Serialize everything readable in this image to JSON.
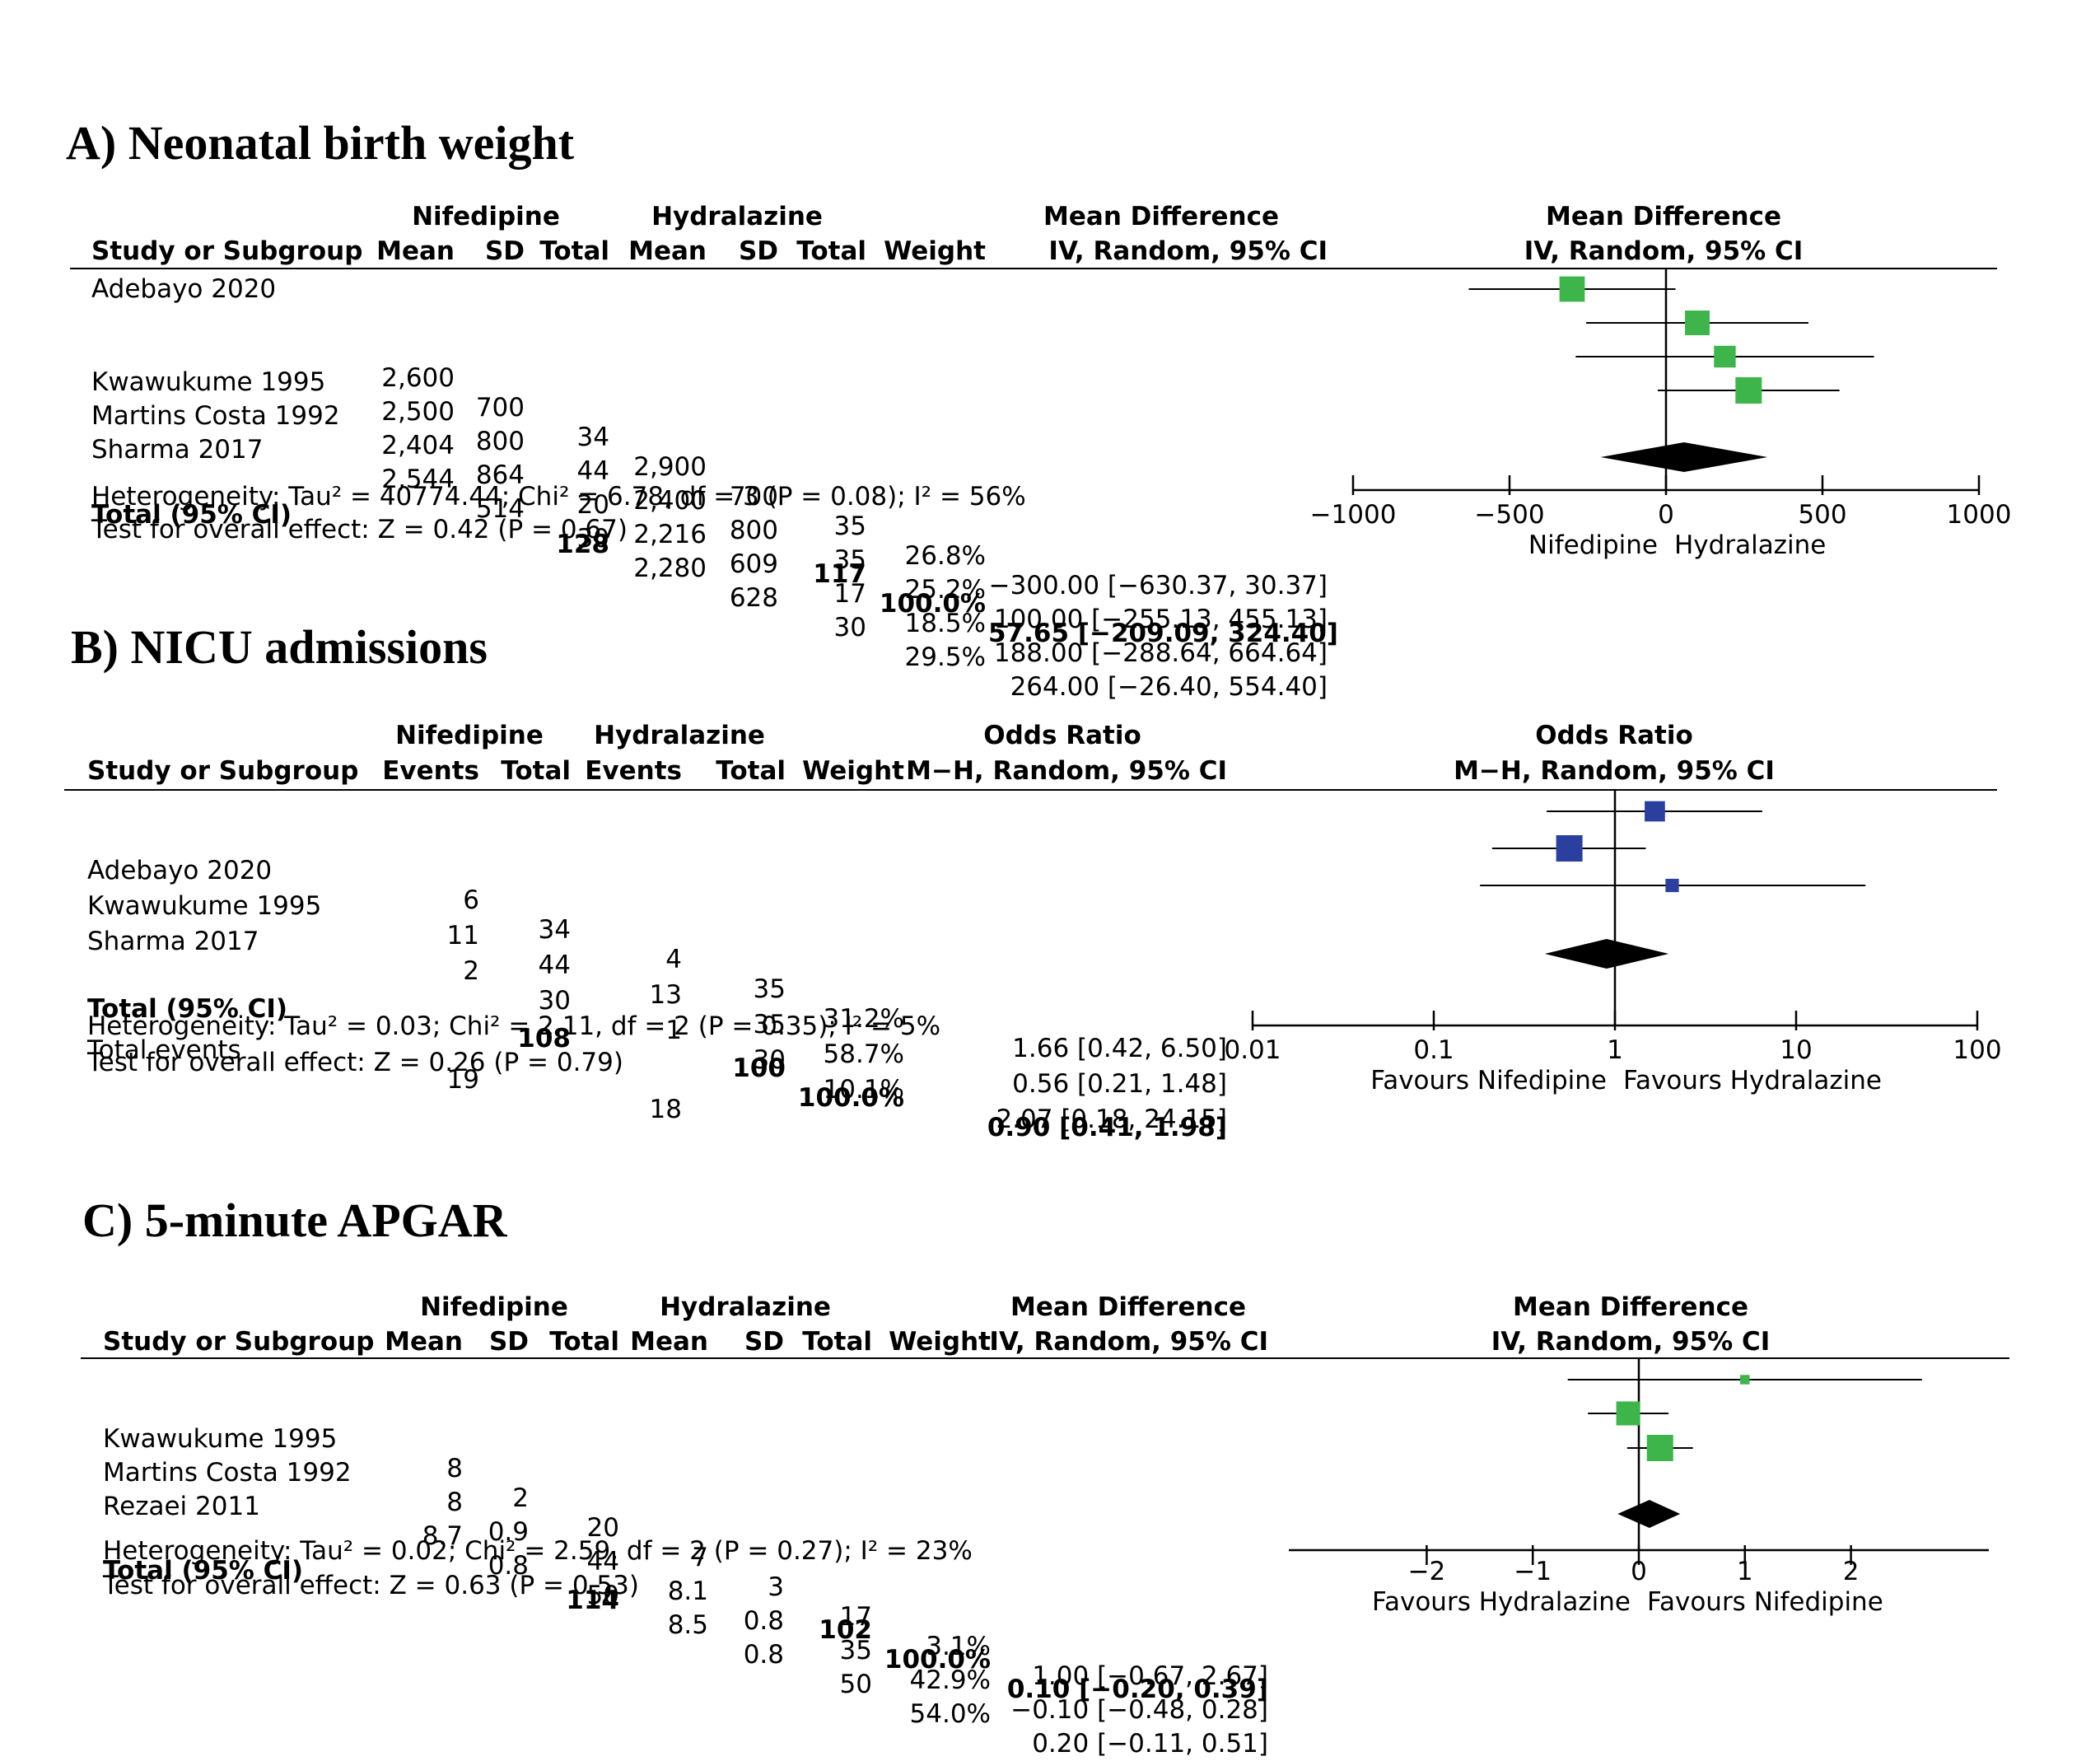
{
  "chart_data": [
    {
      "type": "forest",
      "panel_title": "A) Neonatal birth weight",
      "header": {
        "group1": "Nifedipine",
        "group2": "Hydralazine",
        "effect_title": "Mean Difference",
        "effect_subtitle": "IV, Random, 95% CI",
        "col_study": "Study or Subgroup",
        "g1_cols": [
          "Mean",
          "SD",
          "Total"
        ],
        "g2_cols": [
          "Mean",
          "SD",
          "Total"
        ],
        "col_weight": "Weight"
      },
      "studies": [
        {
          "name": "Adebayo 2020",
          "g1": [
            "2,600",
            "700",
            "34"
          ],
          "g2": [
            "2,900",
            "700",
            "35"
          ],
          "weight": "26.8%",
          "ci_text": "−300.00 [−630.37, 30.37]",
          "est": -300.0,
          "lo": -630.37,
          "hi": 30.37,
          "w": 26.8
        },
        {
          "name": "Kwawukume 1995",
          "g1": [
            "2,500",
            "800",
            "44"
          ],
          "g2": [
            "2,400",
            "800",
            "35"
          ],
          "weight": "25.2%",
          "ci_text": "100.00 [−255.13, 455.13]",
          "est": 100.0,
          "lo": -255.13,
          "hi": 455.13,
          "w": 25.2
        },
        {
          "name": "Martins Costa 1992",
          "g1": [
            "2,404",
            "864",
            "20"
          ],
          "g2": [
            "2,216",
            "609",
            "17"
          ],
          "weight": "18.5%",
          "ci_text": "188.00 [−288.64, 664.64]",
          "est": 188.0,
          "lo": -288.64,
          "hi": 664.64,
          "w": 18.5
        },
        {
          "name": "Sharma 2017",
          "g1": [
            "2,544",
            "514",
            "30"
          ],
          "g2": [
            "2,280",
            "628",
            "30"
          ],
          "weight": "29.5%",
          "ci_text": "264.00 [−26.40, 554.40]",
          "est": 264.0,
          "lo": -26.4,
          "hi": 554.4,
          "w": 29.5
        }
      ],
      "total": {
        "label": "Total (95% CI)",
        "g1_total": "128",
        "g2_total": "117",
        "weight": "100.0%",
        "ci_text": "57.65 [−209.09, 324.40]",
        "est": 57.65,
        "lo": -209.09,
        "hi": 324.4
      },
      "notes": [
        "Heterogeneity: Tau² = 40774.44; Chi² = 6.78, df = 3 (P = 0.08); I² = 56%",
        "Test for overall effect: Z = 0.42 (P = 0.67)"
      ],
      "axis": {
        "scale": "linear",
        "min": -1000,
        "max": 1000,
        "null": 0,
        "ticks": [
          -1000,
          -500,
          0,
          500,
          1000
        ],
        "tick_labels": [
          "−1000",
          "−500",
          "0",
          "500",
          "1000"
        ],
        "favours_left": "Nifedipine",
        "favours_right": "Hydralazine"
      },
      "marker_color": "#3db54a"
    },
    {
      "type": "forest",
      "panel_title": "B) NICU admissions",
      "header": {
        "group1": "Nifedipine",
        "group2": "Hydralazine",
        "effect_title": "Odds Ratio",
        "effect_subtitle": "M−H, Random, 95% CI",
        "col_study": "Study or Subgroup",
        "g1_cols": [
          "Events",
          "Total"
        ],
        "g2_cols": [
          "Events",
          "Total"
        ],
        "col_weight": "Weight"
      },
      "studies": [
        {
          "name": "Adebayo 2020",
          "g1": [
            "6",
            "34"
          ],
          "g2": [
            "4",
            "35"
          ],
          "weight": "31.2%",
          "ci_text": "1.66 [0.42, 6.50]",
          "est": 1.66,
          "lo": 0.42,
          "hi": 6.5,
          "w": 31.2
        },
        {
          "name": "Kwawukume 1995",
          "g1": [
            "11",
            "44"
          ],
          "g2": [
            "13",
            "35"
          ],
          "weight": "58.7%",
          "ci_text": "0.56 [0.21, 1.48]",
          "est": 0.56,
          "lo": 0.21,
          "hi": 1.48,
          "w": 58.7
        },
        {
          "name": "Sharma 2017",
          "g1": [
            "2",
            "30"
          ],
          "g2": [
            "1",
            "30"
          ],
          "weight": "10.1%",
          "ci_text": "2.07 [0.18, 24.15]",
          "est": 2.07,
          "lo": 0.18,
          "hi": 24.15,
          "w": 10.1
        }
      ],
      "total": {
        "label": "Total (95% CI)",
        "g1_total": "108",
        "g2_total": "100",
        "weight": "100.0%",
        "ci_text": "0.90 [0.41, 1.98]",
        "est": 0.9,
        "lo": 0.41,
        "hi": 1.98
      },
      "total_events": {
        "label": "Total events",
        "g1": "19",
        "g2": "18"
      },
      "notes": [
        "Heterogeneity: Tau² = 0.03; Chi² = 2.11, df = 2 (P = 0.35); I² = 5%",
        "Test for overall effect: Z = 0.26 (P = 0.79)"
      ],
      "axis": {
        "scale": "log",
        "min": 0.01,
        "max": 100,
        "null": 1,
        "ticks": [
          0.01,
          0.1,
          1,
          10,
          100
        ],
        "tick_labels": [
          "0.01",
          "0.1",
          "1",
          "10",
          "100"
        ],
        "favours_left": "Favours Nifedipine",
        "favours_right": "Favours Hydralazine"
      },
      "marker_color": "#2b3f9e"
    },
    {
      "type": "forest",
      "panel_title": "C) 5-minute APGAR",
      "header": {
        "group1": "Nifedipine",
        "group2": "Hydralazine",
        "effect_title": "Mean Difference",
        "effect_subtitle": "IV, Random, 95% CI",
        "col_study": "Study or Subgroup",
        "g1_cols": [
          "Mean",
          "SD",
          "Total"
        ],
        "g2_cols": [
          "Mean",
          "SD",
          "Total"
        ],
        "col_weight": "Weight"
      },
      "studies": [
        {
          "name": "Kwawukume 1995",
          "g1": [
            "8",
            "2",
            "20"
          ],
          "g2": [
            "7",
            "3",
            "17"
          ],
          "weight": "3.1%",
          "ci_text": "1.00 [−0.67, 2.67]",
          "est": 1.0,
          "lo": -0.67,
          "hi": 2.67,
          "w": 3.1
        },
        {
          "name": "Martins Costa 1992",
          "g1": [
            "8",
            "0.9",
            "44"
          ],
          "g2": [
            "8.1",
            "0.8",
            "35"
          ],
          "weight": "42.9%",
          "ci_text": "−0.10 [−0.48, 0.28]",
          "est": -0.1,
          "lo": -0.48,
          "hi": 0.28,
          "w": 42.9
        },
        {
          "name": "Rezaei 2011",
          "g1": [
            "8.7",
            "0.8",
            "50"
          ],
          "g2": [
            "8.5",
            "0.8",
            "50"
          ],
          "weight": "54.0%",
          "ci_text": "0.20 [−0.11, 0.51]",
          "est": 0.2,
          "lo": -0.11,
          "hi": 0.51,
          "w": 54.0
        }
      ],
      "total": {
        "label": "Total (95% CI)",
        "g1_total": "114",
        "g2_total": "102",
        "weight": "100.0%",
        "ci_text": "0.10 [−0.20, 0.39]",
        "est": 0.1,
        "lo": -0.2,
        "hi": 0.39
      },
      "notes": [
        "Heterogeneity: Tau² = 0.02; Chi² = 2.59, df = 2 (P = 0.27); I² = 23%",
        "Test for overall effect: Z = 0.63 (P = 0.53)"
      ],
      "axis": {
        "scale": "linear",
        "min": -3.3,
        "max": 3.3,
        "null": 0,
        "ticks": [
          -2,
          -1,
          0,
          1,
          2
        ],
        "tick_labels": [
          "−2",
          "−1",
          "0",
          "1",
          "2"
        ],
        "favours_left": "Favours Hydralazine",
        "favours_right": "Favours Nifedipine"
      },
      "marker_color": "#3db54a"
    }
  ]
}
